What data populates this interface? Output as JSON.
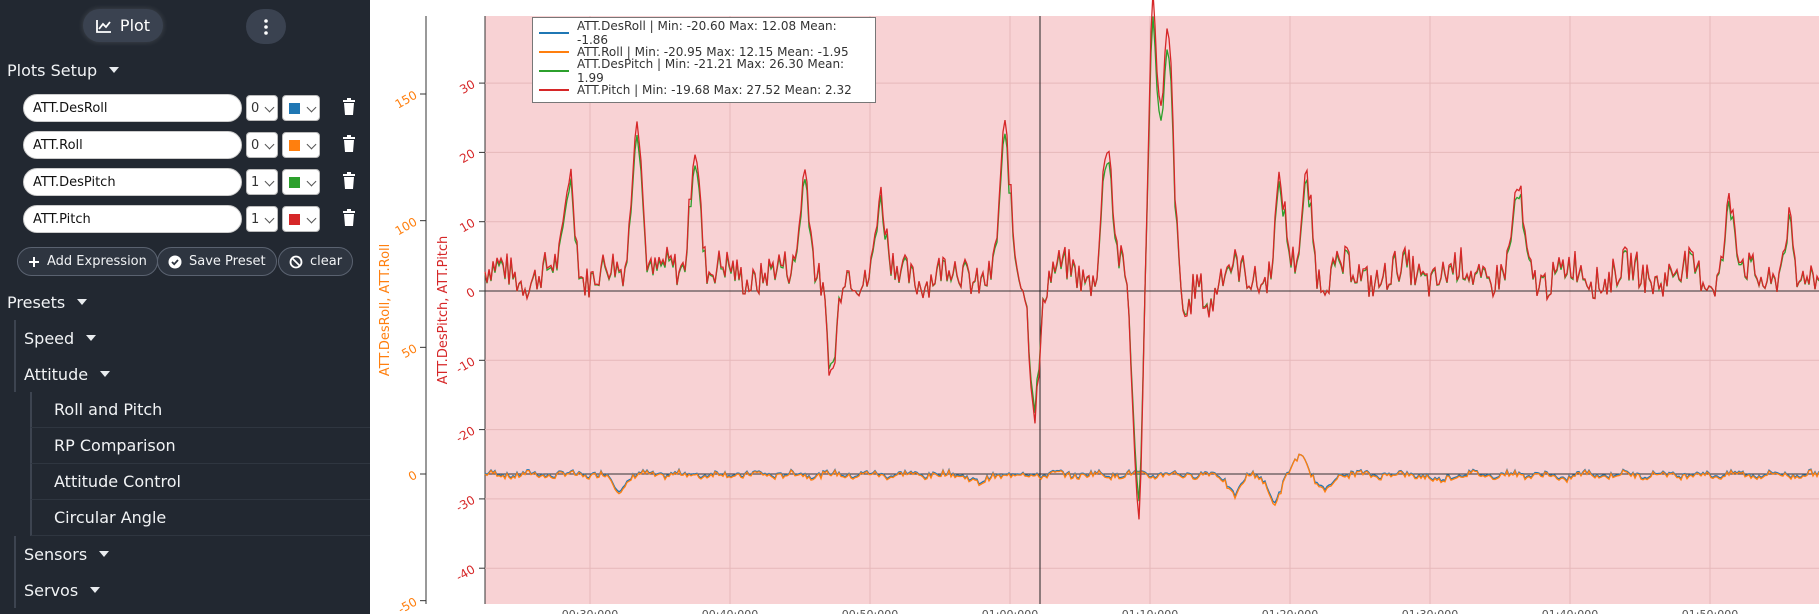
{
  "toolbar": {
    "plot_label": "Plot"
  },
  "plots_setup": {
    "title": "Plots Setup",
    "expressions": [
      {
        "name": "ATT.DesRoll",
        "axis": "0",
        "color": "#1f77b4"
      },
      {
        "name": "ATT.Roll",
        "axis": "0",
        "color": "#ff7f0e"
      },
      {
        "name": "ATT.DesPitch",
        "axis": "1",
        "color": "#2ca02c"
      },
      {
        "name": "ATT.Pitch",
        "axis": "1",
        "color": "#d62728"
      }
    ],
    "add_label": "Add Expression",
    "save_label": "Save Preset",
    "clear_label": "clear"
  },
  "presets": {
    "title": "Presets",
    "speed": "Speed",
    "attitude": "Attitude",
    "attitude_items": [
      "Roll and Pitch",
      "RP Comparison",
      "Attitude Control",
      "Circular Angle"
    ],
    "sensors": "Sensors",
    "servos": "Servos"
  },
  "legend": [
    "ATT.DesRoll | Min: -20.60    Max: 12.08    Mean: -1.86",
    "ATT.Roll | Min: -20.95    Max: 12.15    Mean: -1.95",
    "ATT.DesPitch | Min: -21.21    Max: 26.30    Mean: 1.99",
    "ATT.Pitch | Min: -19.68    Max: 27.52    Mean: 2.32"
  ],
  "chart_data": {
    "type": "line",
    "y1": {
      "label": "ATT.DesRoll, ATT.Roll",
      "color": "#ff7f0e",
      "ticks": [
        150,
        100,
        50,
        0,
        -50
      ],
      "range": [
        -50,
        150
      ]
    },
    "y2": {
      "label": "ATT.DesPitch, ATT.Pitch",
      "color": "#d62728",
      "ticks": [
        30,
        20,
        10,
        0,
        -10,
        -20,
        -30,
        -40
      ],
      "range": [
        -43,
        32
      ]
    },
    "x_tick_labels": [
      "00:30:000",
      "00:40:000",
      "00:50:000",
      "01:00:000",
      "01:10:000",
      "01:20:000",
      "01:30:000",
      "01:40:000",
      "01:50:000"
    ],
    "background": "#f8d2d4",
    "series": [
      {
        "name": "ATT.DesRoll",
        "color": "#1f77b4",
        "axis": "y1"
      },
      {
        "name": "ATT.Roll",
        "color": "#ff7f0e",
        "axis": "y1"
      },
      {
        "name": "ATT.DesPitch",
        "color": "#2ca02c",
        "axis": "y2"
      },
      {
        "name": "ATT.Pitch",
        "color": "#d62728",
        "axis": "y2"
      }
    ]
  }
}
